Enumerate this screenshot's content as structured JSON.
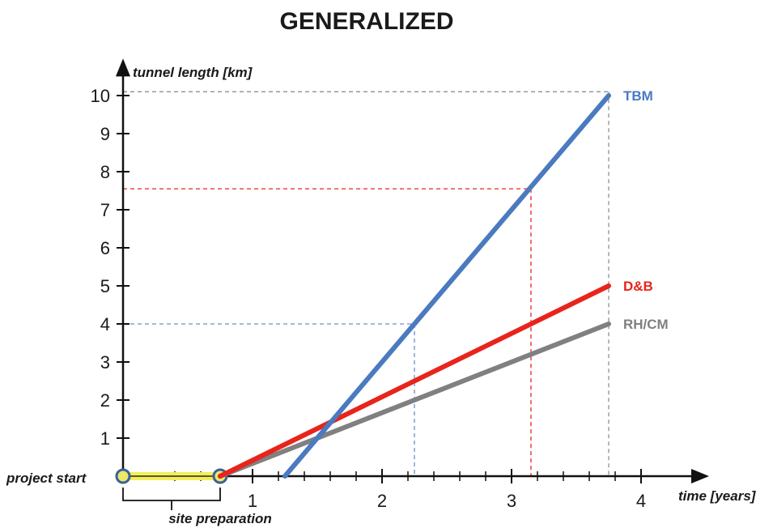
{
  "chart_data": {
    "type": "line",
    "title": "GENERALIZED",
    "xlabel": "time [years]",
    "ylabel": "tunnel length [km]",
    "xlim": [
      0,
      4.4
    ],
    "ylim": [
      0,
      10.8
    ],
    "xticks": [
      1,
      2,
      3,
      4
    ],
    "xminor": [
      0.4,
      0.6,
      1.2,
      1.4,
      1.6,
      1.8,
      2.2,
      2.4,
      2.6,
      2.8,
      3.2,
      3.4,
      3.6,
      3.8
    ],
    "yticks": [
      1,
      2,
      3,
      4,
      5,
      6,
      7,
      8,
      9,
      10
    ],
    "series": [
      {
        "name": "TBM",
        "color": "#4a7ac0",
        "points": [
          [
            1.25,
            0
          ],
          [
            3.75,
            10
          ]
        ]
      },
      {
        "name": "D&B",
        "color": "#e8241c",
        "points": [
          [
            0.75,
            0
          ],
          [
            3.75,
            5
          ]
        ]
      },
      {
        "name": "RH/CM",
        "color": "#808080",
        "points": [
          [
            0.75,
            0
          ],
          [
            3.75,
            4
          ]
        ]
      }
    ],
    "phase": {
      "start_label": "project start",
      "span_label": "site preparation",
      "x_start": 0,
      "x_end": 0.75,
      "color": "#f3f050"
    },
    "reference_lines": [
      {
        "x": 2.25,
        "y": 4,
        "color": "#6a90cc"
      },
      {
        "x": 3.15,
        "y": 7.55,
        "color": "#e8241c"
      },
      {
        "x": 3.75,
        "y": 10.1,
        "color": "#909090"
      }
    ],
    "grid": false
  }
}
